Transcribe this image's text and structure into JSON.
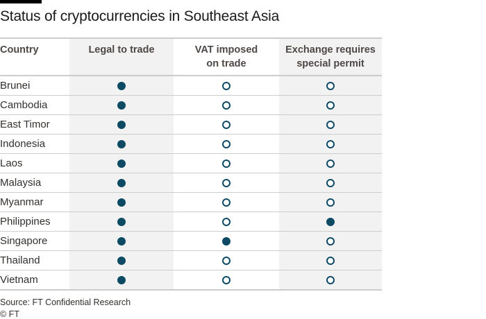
{
  "title": "Status of cryptocurrencies in Southeast Asia",
  "colors": {
    "marker": "#0d4a63",
    "shade": "#f2f2f2",
    "rule": "#cccccc"
  },
  "chart_data": {
    "type": "table",
    "title": "Status of cryptocurrencies in Southeast Asia",
    "columns": [
      "Country",
      "Legal to trade",
      "VAT imposed\non trade",
      "Exchange requires\nspecial permit"
    ],
    "legend": {
      "filled": "yes",
      "empty": "no"
    },
    "rows": [
      {
        "country": "Brunei",
        "legal_to_trade": true,
        "vat_imposed": false,
        "special_permit": false
      },
      {
        "country": "Cambodia",
        "legal_to_trade": true,
        "vat_imposed": false,
        "special_permit": false
      },
      {
        "country": "East Timor",
        "legal_to_trade": true,
        "vat_imposed": false,
        "special_permit": false
      },
      {
        "country": "Indonesia",
        "legal_to_trade": true,
        "vat_imposed": false,
        "special_permit": false
      },
      {
        "country": "Laos",
        "legal_to_trade": true,
        "vat_imposed": false,
        "special_permit": false
      },
      {
        "country": "Malaysia",
        "legal_to_trade": true,
        "vat_imposed": false,
        "special_permit": false
      },
      {
        "country": "Myanmar",
        "legal_to_trade": true,
        "vat_imposed": false,
        "special_permit": false
      },
      {
        "country": "Philippines",
        "legal_to_trade": true,
        "vat_imposed": false,
        "special_permit": true
      },
      {
        "country": "Singapore",
        "legal_to_trade": true,
        "vat_imposed": true,
        "special_permit": false
      },
      {
        "country": "Thailand",
        "legal_to_trade": true,
        "vat_imposed": false,
        "special_permit": false
      },
      {
        "country": "Vietnam",
        "legal_to_trade": true,
        "vat_imposed": false,
        "special_permit": false
      }
    ]
  },
  "footer": {
    "source": "Source: FT Confidential Research",
    "credit": "© FT"
  }
}
